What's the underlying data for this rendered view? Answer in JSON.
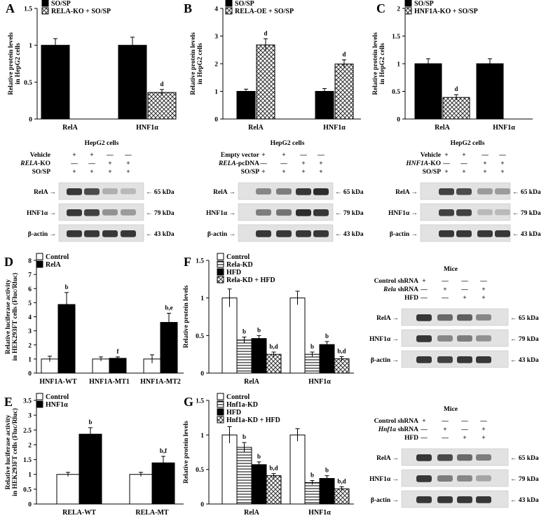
{
  "chart_data": [
    {
      "letter": "A",
      "type": "bar",
      "ylabel": [
        "Relative protein levels",
        "in HepG2 cells"
      ],
      "categories": [
        "RelA",
        "HNF1α"
      ],
      "ylim": [
        0,
        1.5
      ],
      "yticks": [
        "0",
        "0.5",
        "1",
        "1.5"
      ],
      "series": [
        {
          "name": "SO/SP",
          "pattern": "solid",
          "values": [
            1.0,
            1.0
          ],
          "errors": [
            0.09,
            0.11
          ],
          "labels": [
            "",
            ""
          ]
        },
        {
          "name": "RELA-KO + SO/SP",
          "pattern": "cross",
          "values": [
            0,
            0.36
          ],
          "errors": [
            0,
            0.04
          ],
          "labels": [
            "",
            "d"
          ]
        }
      ],
      "legend_placement": "top"
    },
    {
      "letter": "B",
      "type": "bar",
      "ylabel": [
        "Relative protein levels",
        "in HepG2 cells"
      ],
      "categories": [
        "RelA",
        "HNF1α"
      ],
      "ylim": [
        0,
        4
      ],
      "yticks": [
        "0",
        "1",
        "2",
        "3",
        "4"
      ],
      "series": [
        {
          "name": "SO/SP",
          "pattern": "solid",
          "values": [
            1.0,
            1.0
          ],
          "errors": [
            0.08,
            0.1
          ],
          "labels": [
            "",
            ""
          ]
        },
        {
          "name": "RELA-OE + SO/SP",
          "pattern": "cross",
          "values": [
            2.68,
            1.99
          ],
          "errors": [
            0.22,
            0.15
          ],
          "labels": [
            "d",
            "d"
          ]
        }
      ],
      "legend_placement": "top"
    },
    {
      "letter": "C",
      "type": "bar",
      "ylabel": [
        "Relative protein levels",
        "in HepG2 cells"
      ],
      "categories": [
        "RelA",
        "HNF1α"
      ],
      "ylim": [
        0,
        2
      ],
      "yticks": [
        "0",
        "0.5",
        "1",
        "1.5",
        "2"
      ],
      "series": [
        {
          "name": "SO/SP",
          "pattern": "solid",
          "values": [
            1.0,
            1.0
          ],
          "errors": [
            0.09,
            0.09
          ],
          "labels": [
            "",
            ""
          ]
        },
        {
          "name": "HNF1A-KO + SO/SP",
          "pattern": "cross",
          "values": [
            0.39,
            0
          ],
          "errors": [
            0.05,
            0
          ],
          "labels": [
            "d",
            ""
          ]
        }
      ],
      "legend_placement": "top"
    },
    {
      "letter": "D",
      "type": "bar",
      "ylabel": [
        "Relative luciferase activity",
        "in HEK293FT cells (Fluc/Rluc)"
      ],
      "categories": [
        "HNF1A-WT",
        "HNF1A-MT1",
        "HNF1A-MT2"
      ],
      "ylim": [
        0,
        8
      ],
      "yticks": [
        "0",
        "1",
        "2",
        "3",
        "4",
        "5",
        "6",
        "7",
        "8"
      ],
      "series": [
        {
          "name": "Control",
          "pattern": "white",
          "values": [
            1.0,
            1.0,
            1.0
          ],
          "errors": [
            0.2,
            0.15,
            0.3
          ],
          "labels": [
            "",
            "",
            ""
          ]
        },
        {
          "name": "RelA",
          "pattern": "solid",
          "values": [
            4.87,
            1.05,
            3.6
          ],
          "errors": [
            0.85,
            0.1,
            0.65
          ],
          "labels": [
            "b",
            "f",
            "b,e"
          ]
        }
      ],
      "legend_placement": "top-left"
    },
    {
      "letter": "E",
      "type": "bar",
      "ylabel": [
        "Relative luciferase activity",
        "in HEK293FT cells (Fluc/Rluc)"
      ],
      "categories": [
        "RELA-WT",
        "RELA-MT"
      ],
      "ylim": [
        0,
        3.5
      ],
      "yticks": [
        "0",
        "0.5",
        "1",
        "1.5",
        "2",
        "2.5",
        "3",
        "3.5"
      ],
      "series": [
        {
          "name": "Control",
          "pattern": "white",
          "values": [
            1.0,
            1.0
          ],
          "errors": [
            0.07,
            0.07
          ],
          "labels": [
            "",
            ""
          ]
        },
        {
          "name": "HNF1α",
          "pattern": "solid",
          "values": [
            2.36,
            1.39
          ],
          "errors": [
            0.22,
            0.22
          ],
          "labels": [
            "b",
            "b,f"
          ]
        }
      ],
      "legend_placement": "top-left"
    },
    {
      "letter": "F",
      "type": "bar",
      "ylabel": [
        "Relative protein levels"
      ],
      "categories": [
        "RelA",
        "HNF1α"
      ],
      "ylim": [
        0,
        1.5
      ],
      "yticks": [
        "0",
        "0.5",
        "1",
        "1.5"
      ],
      "series": [
        {
          "name": "Control",
          "pattern": "white",
          "values": [
            1.0,
            1.0
          ],
          "errors": [
            0.12,
            0.09
          ],
          "labels": [
            "",
            ""
          ]
        },
        {
          "name": "Rela-KD",
          "pattern": "hstripe",
          "values": [
            0.44,
            0.25
          ],
          "errors": [
            0.04,
            0.03
          ],
          "labels": [
            "b",
            "b"
          ]
        },
        {
          "name": "HFD",
          "pattern": "solid",
          "values": [
            0.46,
            0.38
          ],
          "errors": [
            0.04,
            0.04
          ],
          "labels": [
            "b",
            "b"
          ]
        },
        {
          "name": "Rela-KD + HFD",
          "pattern": "cross",
          "values": [
            0.25,
            0.19
          ],
          "errors": [
            0.03,
            0.03
          ],
          "labels": [
            "b,d",
            "b,d"
          ]
        }
      ],
      "legend_placement": "top-left"
    },
    {
      "letter": "G",
      "type": "bar",
      "ylabel": [
        "Relative protein levels"
      ],
      "categories": [
        "RelA",
        "HNF1α"
      ],
      "ylim": [
        0,
        1.5
      ],
      "yticks": [
        "0",
        "0.5",
        "1",
        "1.5"
      ],
      "series": [
        {
          "name": "Control",
          "pattern": "white",
          "values": [
            1.0,
            1.0
          ],
          "errors": [
            0.12,
            0.09
          ],
          "labels": [
            "",
            ""
          ]
        },
        {
          "name": "Hnf1a-KD",
          "pattern": "hstripe",
          "values": [
            0.82,
            0.31
          ],
          "errors": [
            0.07,
            0.03
          ],
          "labels": [
            "b",
            "b"
          ]
        },
        {
          "name": "HFD",
          "pattern": "solid",
          "values": [
            0.57,
            0.37
          ],
          "errors": [
            0.04,
            0.04
          ],
          "labels": [
            "b",
            "b"
          ]
        },
        {
          "name": "Hnf1a-KD + HFD",
          "pattern": "cross",
          "values": [
            0.41,
            0.22
          ],
          "errors": [
            0.03,
            0.03
          ],
          "labels": [
            "b,d",
            "b,d"
          ]
        }
      ],
      "legend_placement": "top-left"
    }
  ],
  "blots": [
    {
      "title": "HepG2 cells",
      "conditions": [
        {
          "label": "Vehicle",
          "italic": "",
          "signs": [
            "+",
            "+",
            "—",
            "—"
          ]
        },
        {
          "label": "-KO",
          "italic": "RELA",
          "signs": [
            "—",
            "—",
            "+",
            "+"
          ]
        },
        {
          "label": "SO/SP",
          "italic": "",
          "signs": [
            "+",
            "+",
            "+",
            "+"
          ]
        }
      ],
      "bands": [
        {
          "name": "RelA",
          "size": "65 kDa",
          "intensity": [
            0.85,
            0.75,
            0.25,
            0.2
          ]
        },
        {
          "name": "HNF1α",
          "size": "79 kDa",
          "intensity": [
            0.85,
            0.8,
            0.4,
            0.35
          ]
        },
        {
          "name": "β-actin",
          "size": "43 kDa",
          "intensity": [
            0.85,
            0.85,
            0.85,
            0.85
          ]
        }
      ]
    },
    {
      "title": "HepG2 cells",
      "conditions": [
        {
          "label": "Empty vector",
          "italic": "",
          "signs": [
            "+",
            "+",
            "—",
            "—"
          ]
        },
        {
          "label": "-pcDNA",
          "italic": "RELA",
          "signs": [
            "—",
            "—",
            "+",
            "+"
          ]
        },
        {
          "label": "SO/SP",
          "italic": "",
          "signs": [
            "+",
            "+",
            "+",
            "+"
          ]
        }
      ],
      "bands": [
        {
          "name": "RelA",
          "size": "65 kDa",
          "intensity": [
            0.45,
            0.5,
            0.85,
            0.9
          ]
        },
        {
          "name": "HNF1α",
          "size": "79 kDa",
          "intensity": [
            0.5,
            0.55,
            0.9,
            0.85
          ]
        },
        {
          "name": "β-actin",
          "size": "43 kDa",
          "intensity": [
            0.85,
            0.85,
            0.85,
            0.85
          ]
        }
      ]
    },
    {
      "title": "HepG2 cells",
      "conditions": [
        {
          "label": "Vehicle",
          "italic": "",
          "signs": [
            "+",
            "+",
            "—",
            "—"
          ]
        },
        {
          "label": "-KO",
          "italic": "HNF1A",
          "signs": [
            "—",
            "—",
            "+",
            "+"
          ]
        },
        {
          "label": "SO/SP",
          "italic": "",
          "signs": [
            "+",
            "+",
            "+",
            "+"
          ]
        }
      ],
      "bands": [
        {
          "name": "RelA",
          "size": "65 kDa",
          "intensity": [
            0.8,
            0.75,
            0.35,
            0.35
          ]
        },
        {
          "name": "HNF1α",
          "size": "79 kDa",
          "intensity": [
            0.8,
            0.8,
            0.2,
            0.2
          ]
        },
        {
          "name": "β-actin",
          "size": "43 kDa",
          "intensity": [
            0.85,
            0.85,
            0.85,
            0.85
          ]
        }
      ]
    },
    {
      "title": "Mice",
      "conditions": [
        {
          "label": "Control shRNA",
          "italic": "",
          "signs": [
            "+",
            "—",
            "—",
            "—"
          ]
        },
        {
          "label": " shRNA",
          "italic": "Rela",
          "signs": [
            "—",
            "+",
            "—",
            "+"
          ]
        },
        {
          "label": "HFD",
          "italic": "",
          "signs": [
            "—",
            "—",
            "+",
            "+"
          ]
        }
      ],
      "bands": [
        {
          "name": "RelA",
          "size": "65 kDa",
          "intensity": [
            0.85,
            0.6,
            0.65,
            0.45
          ]
        },
        {
          "name": "HNF1α",
          "size": "79 kDa",
          "intensity": [
            0.85,
            0.45,
            0.5,
            0.4
          ]
        },
        {
          "name": "β-actin",
          "size": "43 kDa",
          "intensity": [
            0.85,
            0.8,
            0.85,
            0.85
          ]
        }
      ]
    },
    {
      "title": "Mice",
      "conditions": [
        {
          "label": "Control shRNA",
          "italic": "",
          "signs": [
            "+",
            "—",
            "—",
            "—"
          ]
        },
        {
          "label": " shRNA",
          "italic": "Hnf1a",
          "signs": [
            "—",
            "+",
            "—",
            "+"
          ]
        },
        {
          "label": "HFD",
          "italic": "",
          "signs": [
            "—",
            "—",
            "+",
            "+"
          ]
        }
      ],
      "bands": [
        {
          "name": "RelA",
          "size": "65 kDa",
          "intensity": [
            0.85,
            0.75,
            0.6,
            0.5
          ]
        },
        {
          "name": "HNF1α",
          "size": "79 kDa",
          "intensity": [
            0.85,
            0.5,
            0.45,
            0.3
          ]
        },
        {
          "name": "β-actin",
          "size": "43 kDa",
          "intensity": [
            0.85,
            0.85,
            0.85,
            0.85
          ]
        }
      ]
    }
  ]
}
